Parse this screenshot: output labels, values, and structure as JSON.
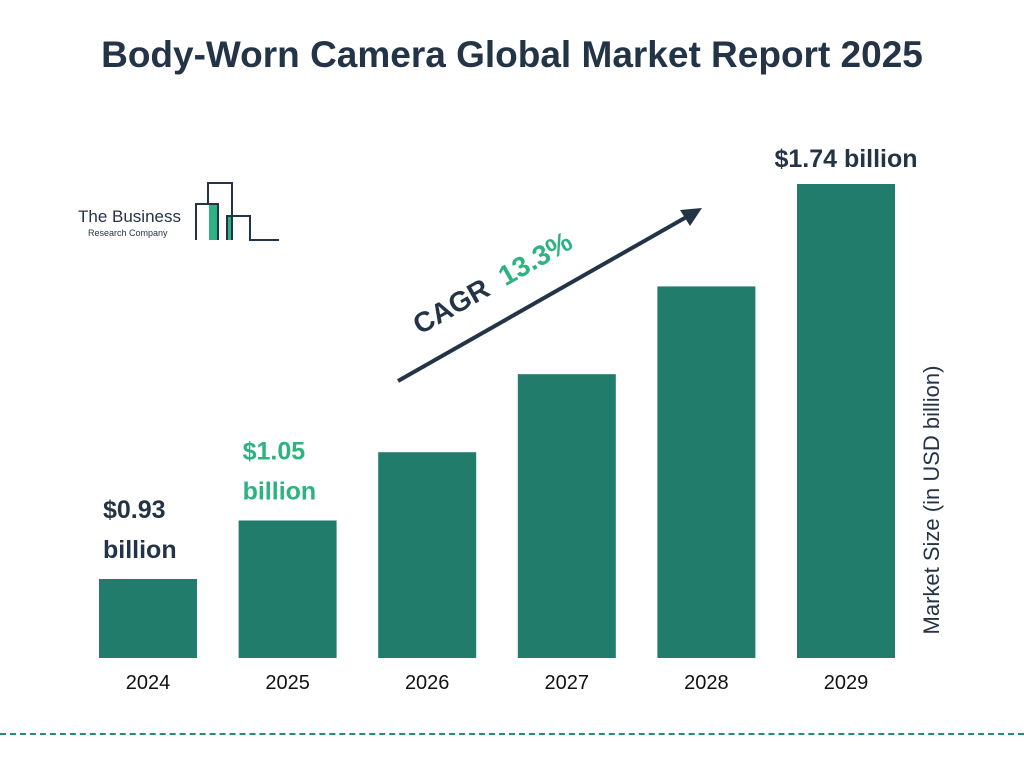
{
  "chart_data": {
    "type": "bar",
    "title": "Body-Worn Camera Global Market Report 2025",
    "categories": [
      "2024",
      "2025",
      "2026",
      "2027",
      "2028",
      "2029"
    ],
    "values": [
      0.93,
      1.05,
      1.19,
      1.35,
      1.53,
      1.74
    ],
    "data_labels": [
      {
        "category": "2024",
        "lines": [
          "$0.93",
          "billion"
        ],
        "color": "#243447"
      },
      {
        "category": "2025",
        "lines": [
          "$1.05",
          "billion"
        ],
        "color": "#2DB37F"
      },
      {
        "category": "2029",
        "lines": [
          "$1.74 billion"
        ],
        "color": "#243447"
      }
    ],
    "ylabel": "Market Size (in USD billion)",
    "xlabel": "",
    "annotation": {
      "prefix": "CAGR",
      "value": "13.3%"
    },
    "grid": false,
    "colors": {
      "bar": "#217C6C",
      "accent": "#2DB37F",
      "text": "#243447"
    }
  },
  "logo": {
    "line1": "The Business",
    "line2": "Research Company"
  }
}
